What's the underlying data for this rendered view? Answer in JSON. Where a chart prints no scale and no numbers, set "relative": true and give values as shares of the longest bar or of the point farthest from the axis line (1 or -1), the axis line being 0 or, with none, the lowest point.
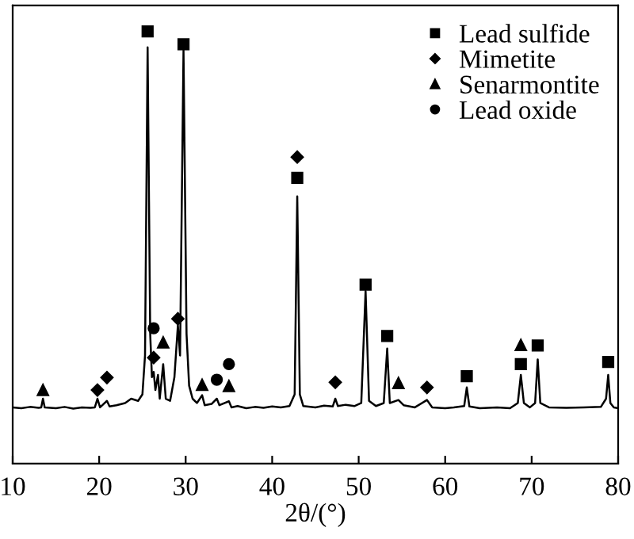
{
  "chart_data": {
    "type": "line",
    "relative": true,
    "xlabel": "2θ/(°)",
    "xlim": [
      10,
      80
    ],
    "xticks": [
      10,
      20,
      30,
      40,
      50,
      60,
      70,
      80
    ],
    "legend": "top right",
    "grid": false,
    "series": [
      {
        "color": "#000000",
        "x": [
          10,
          11,
          12,
          13,
          13.3,
          13.5,
          13.7,
          15,
          16,
          17,
          18,
          19,
          19.5,
          19.8,
          20.1,
          20.9,
          21.2,
          22,
          23,
          23.7,
          24.5,
          25.0,
          25.3,
          25.6,
          25.9,
          26.1,
          26.3,
          26.5,
          26.8,
          27.0,
          27.4,
          27.7,
          28.2,
          28.7,
          29.1,
          29.35,
          29.75,
          30.1,
          30.4,
          30.8,
          31.3,
          31.9,
          32.2,
          33,
          33.6,
          33.9,
          35.0,
          35.3,
          36,
          37,
          38,
          39,
          40,
          41,
          42,
          42.6,
          42.9,
          43.2,
          43.6,
          45,
          46,
          47,
          47.3,
          47.6,
          48.5,
          49.5,
          50.3,
          50.8,
          51.2,
          52,
          52.9,
          53.3,
          53.6,
          54.6,
          55.2,
          56.5,
          57.9,
          58.5,
          60,
          61,
          62.2,
          62.5,
          62.8,
          64,
          66,
          67.5,
          68.4,
          68.75,
          69.1,
          69.8,
          70.4,
          70.7,
          71.0,
          72,
          74,
          76,
          78,
          78.6,
          78.85,
          79.1,
          79.5,
          80
        ],
        "values": [
          0.13,
          0.128,
          0.131,
          0.129,
          0.13,
          0.15,
          0.13,
          0.128,
          0.131,
          0.127,
          0.13,
          0.129,
          0.13,
          0.15,
          0.13,
          0.145,
          0.132,
          0.135,
          0.14,
          0.15,
          0.145,
          0.16,
          0.25,
          0.963,
          0.3,
          0.2,
          0.212,
          0.17,
          0.205,
          0.15,
          0.23,
          0.15,
          0.145,
          0.2,
          0.32,
          0.25,
          0.956,
          0.3,
          0.18,
          0.15,
          0.14,
          0.158,
          0.135,
          0.138,
          0.15,
          0.135,
          0.144,
          0.13,
          0.133,
          0.128,
          0.131,
          0.129,
          0.132,
          0.13,
          0.133,
          0.16,
          0.618,
          0.16,
          0.133,
          0.13,
          0.134,
          0.132,
          0.15,
          0.133,
          0.136,
          0.133,
          0.14,
          0.399,
          0.145,
          0.133,
          0.14,
          0.266,
          0.14,
          0.147,
          0.135,
          0.13,
          0.147,
          0.13,
          0.128,
          0.13,
          0.133,
          0.176,
          0.132,
          0.128,
          0.13,
          0.128,
          0.14,
          0.205,
          0.14,
          0.13,
          0.14,
          0.241,
          0.14,
          0.13,
          0.129,
          0.13,
          0.131,
          0.15,
          0.205,
          0.14,
          0.13,
          0.128
        ]
      },
      {
        "type": "scatter",
        "name": "Lead sulfide",
        "color": "#000000",
        "marker": "square",
        "x": [
          25.6,
          29.75,
          42.9,
          50.8,
          53.3,
          62.5,
          68.75,
          70.7,
          78.85
        ],
        "values": [
          1.0,
          0.97,
          0.661,
          0.414,
          0.295,
          0.202,
          0.23,
          0.273,
          0.235
        ]
      },
      {
        "type": "scatter",
        "name": "Mimetite",
        "color": "#000000",
        "marker": "diamond",
        "x": [
          19.8,
          20.9,
          26.3,
          29.1,
          42.9,
          47.3,
          57.9
        ],
        "values": [
          0.17,
          0.199,
          0.245,
          0.335,
          0.709,
          0.188,
          0.176
        ]
      },
      {
        "type": "scatter",
        "name": "Senarmontite",
        "color": "#000000",
        "marker": "triangle",
        "x": [
          13.5,
          27.4,
          31.9,
          35.0,
          54.6,
          68.75
        ],
        "values": [
          0.17,
          0.28,
          0.182,
          0.179,
          0.186,
          0.274
        ]
      },
      {
        "type": "scatter",
        "name": "Lead oxide",
        "color": "#000000",
        "marker": "circle",
        "x": [
          26.3,
          33.6,
          35.0
        ],
        "values": [
          0.313,
          0.194,
          0.23
        ]
      }
    ]
  }
}
